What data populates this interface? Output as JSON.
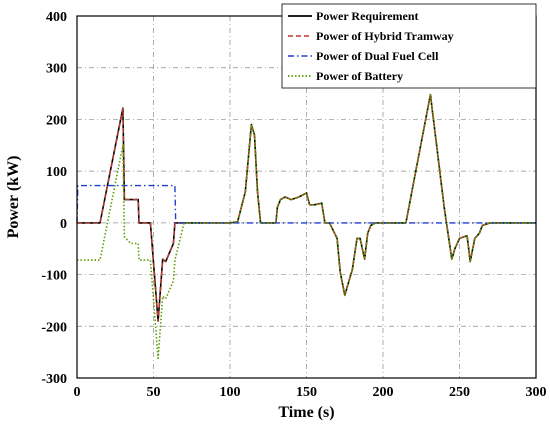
{
  "chart_data": {
    "type": "line",
    "title": "",
    "xlabel": "Time (s)",
    "ylabel": "Power (kW)",
    "xlim": [
      0,
      300
    ],
    "ylim": [
      -300,
      400
    ],
    "xticks": [
      0,
      50,
      100,
      150,
      200,
      250,
      300
    ],
    "yticks": [
      -300,
      -200,
      -100,
      0,
      100,
      200,
      300,
      400
    ],
    "xtick_labels": [
      "0",
      "50",
      "100",
      "150",
      "200",
      "250",
      "300"
    ],
    "ytick_labels": [
      "-300",
      "-200",
      "-100",
      "0",
      "100",
      "200",
      "300",
      "400"
    ],
    "grid": true,
    "legend_position": "top-right",
    "series": [
      {
        "name": "Power Requirement",
        "color": "#000000",
        "style": "solid",
        "x": [
          0,
          15,
          30,
          31,
          40,
          40.5,
          48,
          53,
          56,
          58,
          63,
          64,
          70,
          100,
          105,
          110,
          114,
          116,
          118,
          120,
          122,
          130,
          131,
          133,
          136,
          140,
          145,
          150,
          152,
          155,
          160,
          162,
          165,
          170,
          172,
          175,
          177,
          180,
          183,
          185,
          188,
          190,
          192,
          195,
          200,
          210,
          215,
          231,
          240,
          245,
          247,
          250,
          255,
          257,
          260,
          263,
          265,
          270,
          275,
          280,
          300
        ],
        "y": [
          0,
          0,
          222,
          45,
          45,
          0,
          0,
          -190,
          -70,
          -75,
          -40,
          0,
          0,
          0,
          2,
          60,
          190,
          170,
          60,
          0,
          0,
          0,
          30,
          45,
          50,
          45,
          50,
          58,
          35,
          35,
          38,
          0,
          0,
          -30,
          -95,
          -140,
          -120,
          -90,
          -30,
          -30,
          -70,
          -20,
          -5,
          0,
          0,
          0,
          0,
          248,
          30,
          -70,
          -50,
          -30,
          -25,
          -75,
          -30,
          -20,
          -5,
          0,
          0,
          0,
          0
        ]
      },
      {
        "name": "Power of Hybrid Tramway",
        "color": "#c0392b",
        "style": "dashed",
        "x": [
          0,
          15,
          30,
          31,
          40,
          40.5,
          48,
          53,
          56,
          58,
          63,
          64,
          70,
          100,
          105,
          110,
          114,
          116,
          118,
          120,
          122,
          130,
          131,
          133,
          136,
          140,
          145,
          150,
          152,
          155,
          160,
          162,
          165,
          170,
          172,
          175,
          177,
          180,
          183,
          185,
          188,
          190,
          192,
          195,
          200,
          210,
          215,
          231,
          240,
          245,
          247,
          250,
          255,
          257,
          260,
          263,
          265,
          270,
          275,
          280,
          300
        ],
        "y": [
          0,
          0,
          222,
          45,
          45,
          0,
          0,
          -190,
          -70,
          -75,
          -40,
          0,
          0,
          0,
          2,
          60,
          190,
          170,
          60,
          0,
          0,
          0,
          30,
          45,
          50,
          45,
          50,
          58,
          35,
          35,
          38,
          0,
          0,
          -30,
          -95,
          -140,
          -120,
          -90,
          -30,
          -30,
          -70,
          -20,
          -5,
          0,
          0,
          0,
          0,
          248,
          30,
          -70,
          -50,
          -30,
          -25,
          -75,
          -30,
          -20,
          -5,
          0,
          0,
          0,
          0
        ]
      },
      {
        "name": "Power of Dual Fuel Cell",
        "color": "#1f3fd1",
        "style": "dashdot",
        "x": [
          0,
          0.5,
          64,
          64.5,
          300
        ],
        "y": [
          0,
          72,
          72,
          0,
          0
        ]
      },
      {
        "name": "Power of Battery",
        "color": "#5a9e00",
        "style": "dotted",
        "x": [
          0,
          10,
          15,
          30,
          31,
          35,
          40,
          40.5,
          48,
          53,
          56,
          58,
          63,
          64,
          70,
          100,
          105,
          110,
          114,
          116,
          118,
          120,
          122,
          130,
          131,
          133,
          136,
          140,
          145,
          150,
          152,
          155,
          160,
          162,
          165,
          170,
          172,
          175,
          177,
          180,
          183,
          185,
          188,
          190,
          192,
          195,
          200,
          210,
          215,
          231,
          240,
          245,
          247,
          250,
          255,
          257,
          260,
          263,
          265,
          270,
          275,
          280,
          300
        ],
        "y": [
          -72,
          -72,
          -72,
          150,
          -27,
          -40,
          -40,
          -72,
          -72,
          -262,
          -142,
          -147,
          -112,
          -72,
          0,
          0,
          2,
          60,
          190,
          170,
          60,
          0,
          0,
          0,
          30,
          45,
          50,
          45,
          50,
          58,
          35,
          35,
          38,
          0,
          0,
          -30,
          -95,
          -140,
          -120,
          -90,
          -30,
          -30,
          -70,
          -20,
          -5,
          0,
          0,
          0,
          0,
          248,
          30,
          -70,
          -50,
          -30,
          -25,
          -75,
          -30,
          -20,
          -5,
          0,
          0,
          0,
          0
        ]
      }
    ]
  }
}
